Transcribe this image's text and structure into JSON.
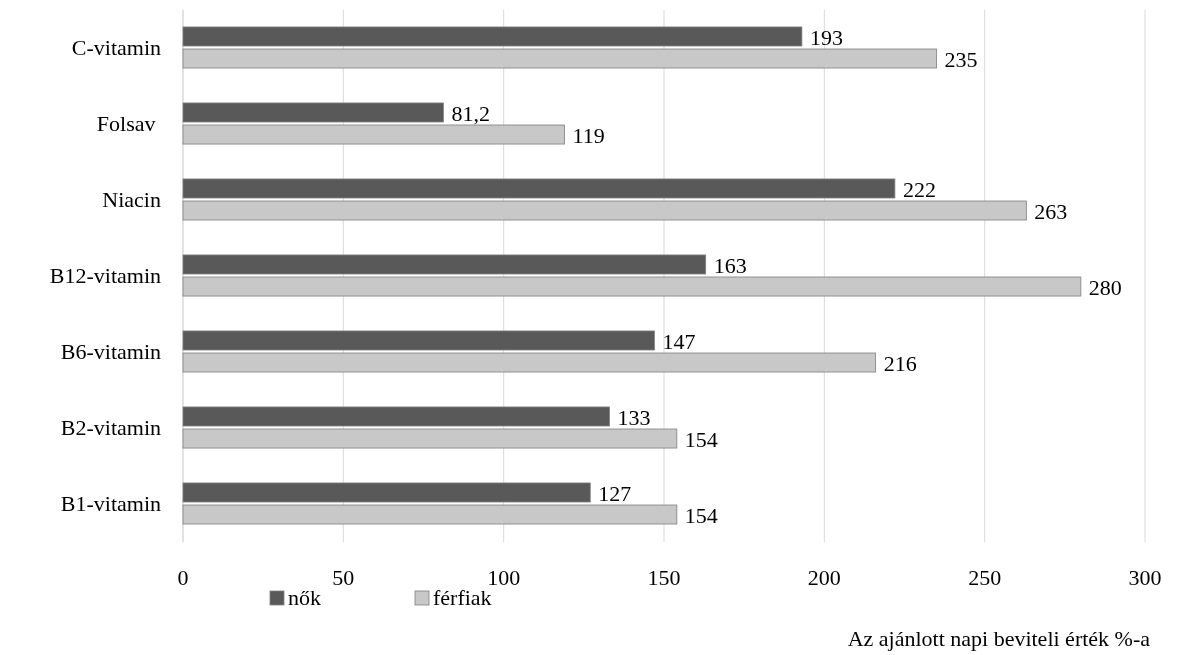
{
  "chart_data": {
    "type": "bar",
    "orientation": "horizontal",
    "categories": [
      "C-vitamin",
      "Folsav ",
      "Niacin",
      "B12-vitamin",
      "B6-vitamin",
      "B2-vitamin",
      "B1-vitamin"
    ],
    "series": [
      {
        "name": "nők",
        "color": "#595959",
        "values": [
          193,
          81.2,
          222,
          163,
          147,
          133,
          127
        ],
        "value_labels": [
          "193",
          "81,2",
          "222",
          "163",
          "147",
          "133",
          "127"
        ]
      },
      {
        "name": "férfiak",
        "color": "#c8c8c8",
        "values": [
          235,
          119,
          263,
          280,
          216,
          154,
          154
        ],
        "value_labels": [
          "235",
          "119",
          "263",
          "280",
          "216",
          "154",
          "154"
        ]
      }
    ],
    "xlim": [
      0,
      300
    ],
    "xticks": [
      0,
      50,
      100,
      150,
      200,
      250,
      300
    ],
    "grid": "x",
    "legend": "bottom left",
    "xlabel": "Az ajánlott napi beviteli érték %-a"
  }
}
